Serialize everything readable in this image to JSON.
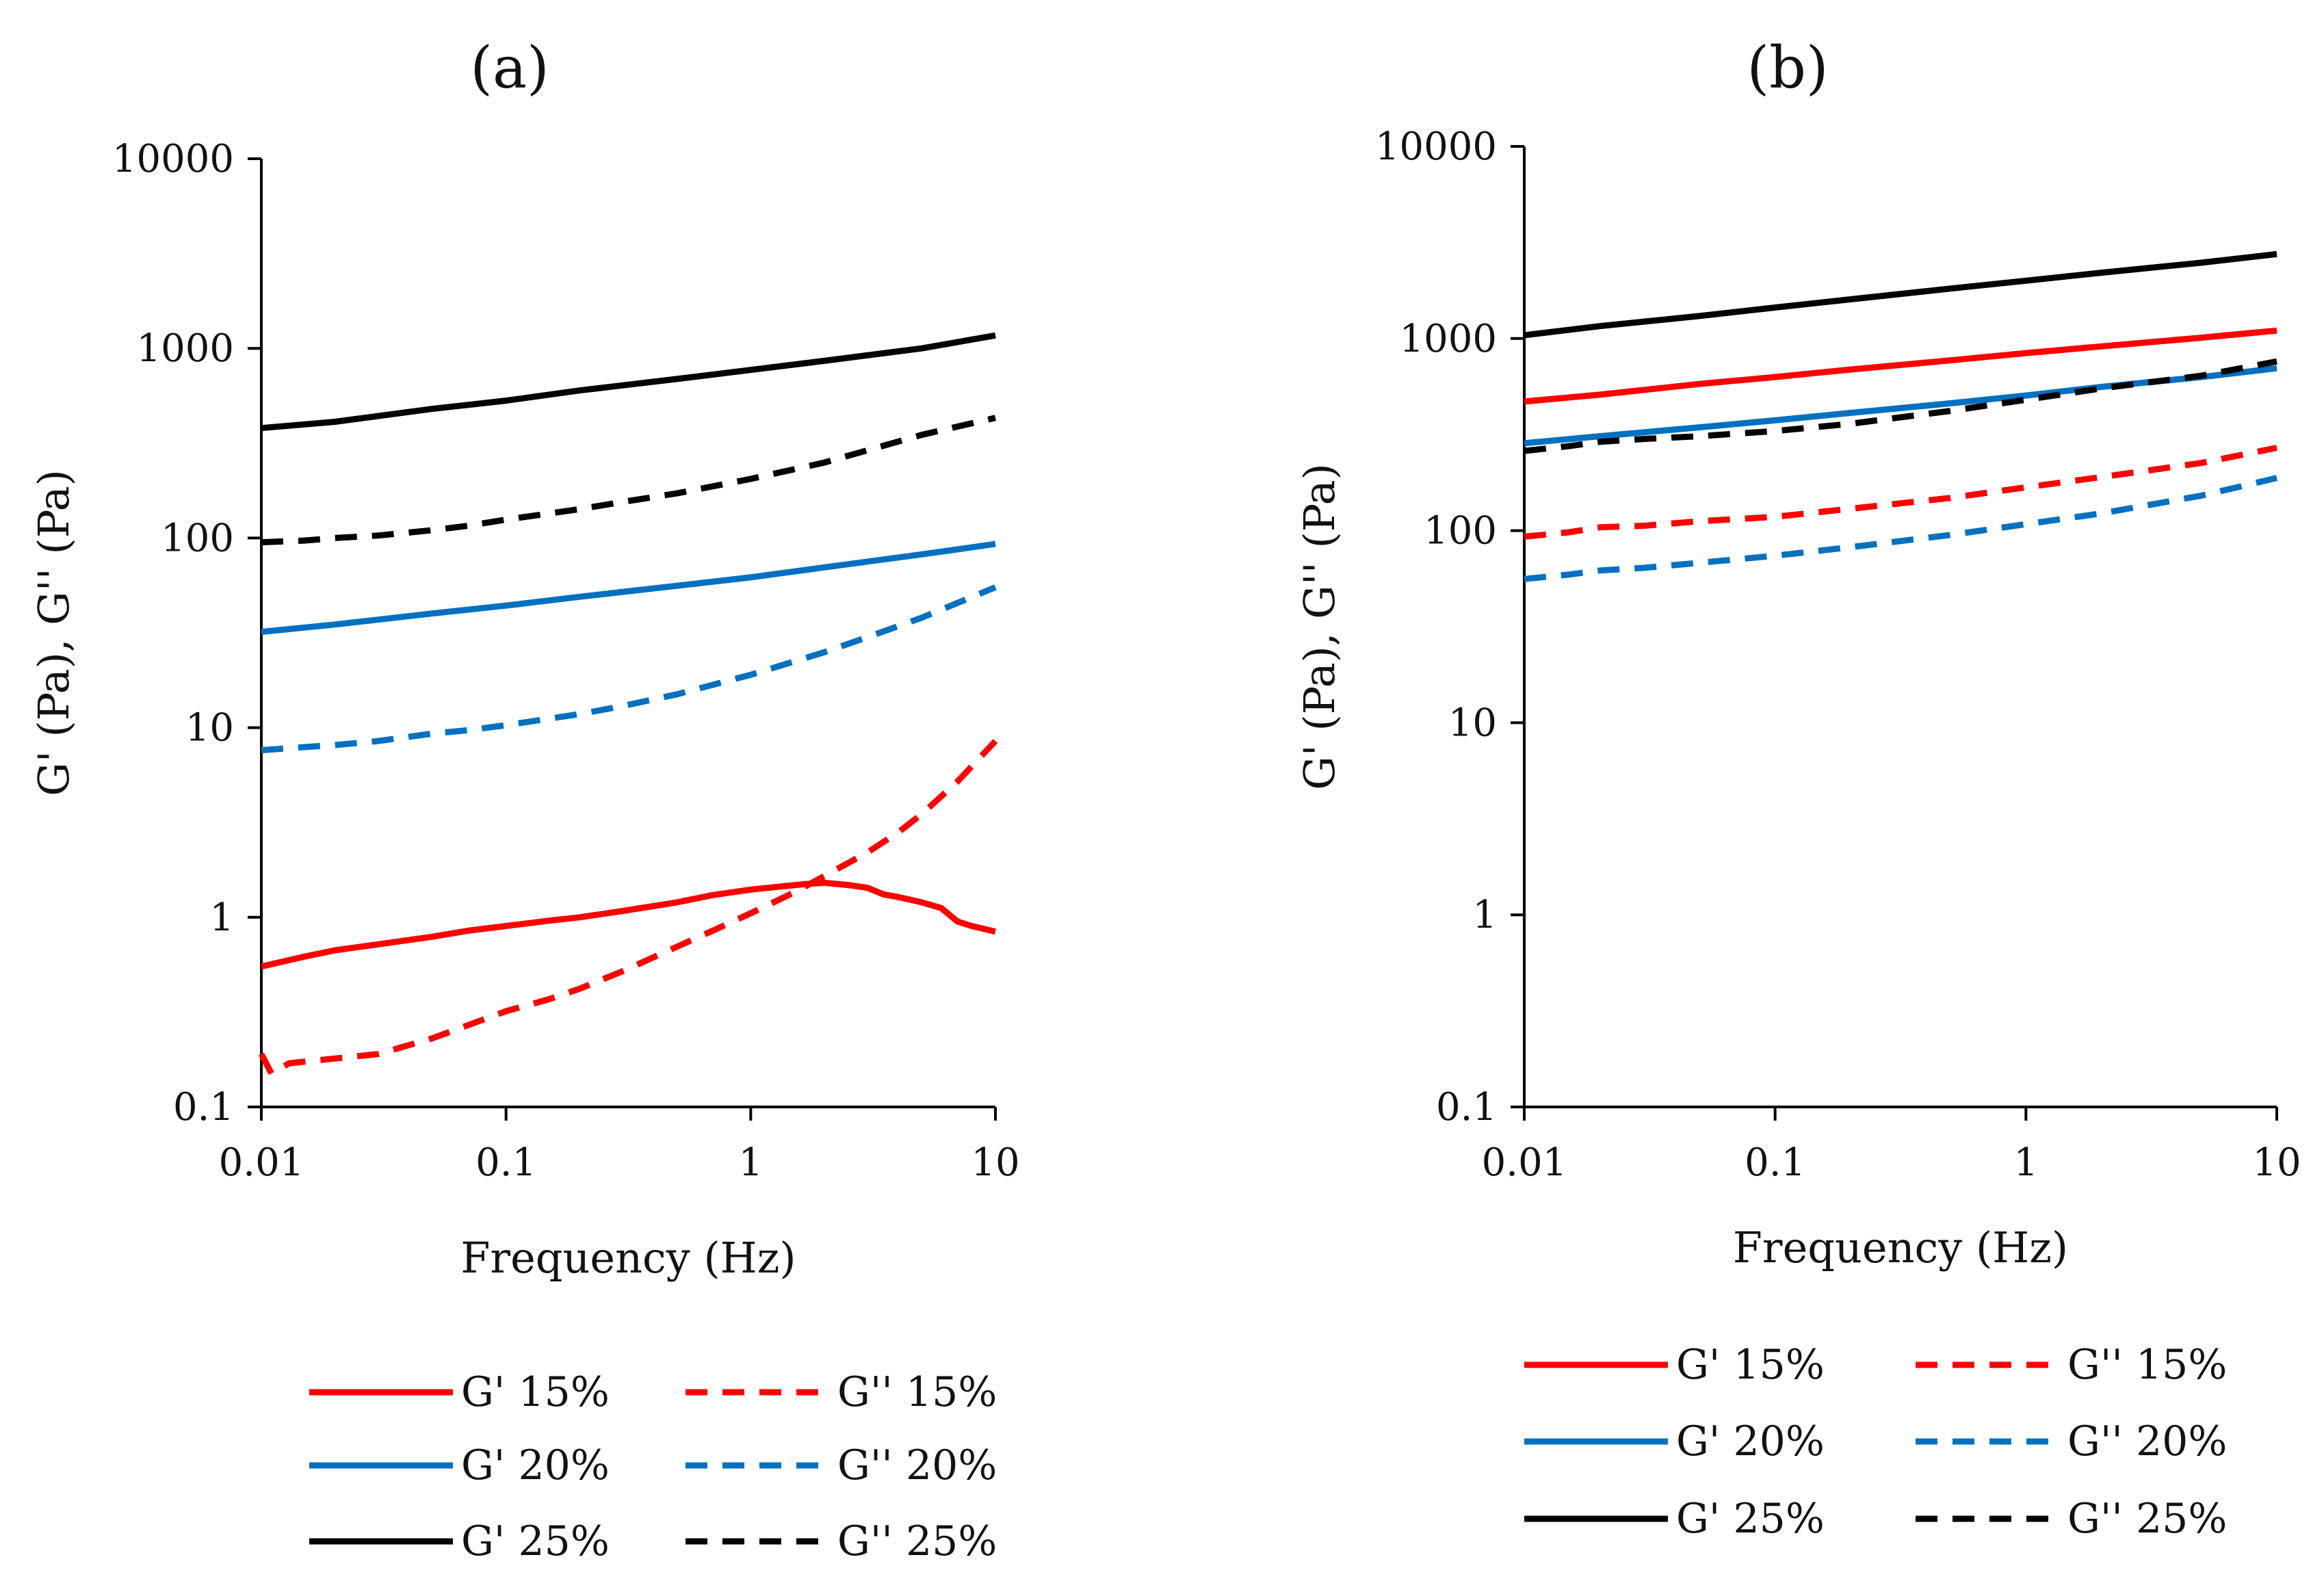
{
  "chart_data": [
    {
      "type": "line",
      "title": "(a)",
      "xlabel": "Frequency (Hz)",
      "ylabel": "G' (Pa), G'' (Pa)",
      "xscale": "log",
      "yscale": "log",
      "xlim": [
        0.01,
        10
      ],
      "ylim": [
        0.1,
        10000
      ],
      "x_tick_labels": [
        "0.01",
        "0.1",
        "1",
        "10"
      ],
      "y_tick_labels": [
        "0.1",
        "1",
        "10",
        "100",
        "1000",
        "10000"
      ],
      "grid": false,
      "legend_position": "bottom",
      "series": [
        {
          "name": "G' 15%",
          "color": "#ff0000",
          "dash": "solid",
          "x": [
            0.01,
            0.015,
            0.02,
            0.03,
            0.05,
            0.07,
            0.1,
            0.15,
            0.2,
            0.3,
            0.5,
            0.7,
            1,
            1.3,
            1.7,
            2,
            2.5,
            3,
            3.5,
            4,
            5,
            6,
            7,
            8,
            10
          ],
          "y": [
            0.55,
            0.62,
            0.67,
            0.72,
            0.79,
            0.85,
            0.9,
            0.96,
            1.0,
            1.08,
            1.2,
            1.31,
            1.4,
            1.45,
            1.5,
            1.52,
            1.48,
            1.43,
            1.32,
            1.28,
            1.2,
            1.12,
            0.95,
            0.9,
            0.84
          ]
        },
        {
          "name": "G'' 15%",
          "color": "#ff0000",
          "dash": "dashed",
          "x": [
            0.01,
            0.011,
            0.013,
            0.02,
            0.03,
            0.05,
            0.07,
            0.1,
            0.15,
            0.2,
            0.3,
            0.5,
            0.7,
            1,
            1.5,
            2,
            3,
            4,
            5,
            7,
            10
          ],
          "y": [
            0.19,
            0.15,
            0.17,
            0.18,
            0.19,
            0.23,
            0.27,
            0.32,
            0.37,
            0.42,
            0.52,
            0.7,
            0.85,
            1.05,
            1.35,
            1.65,
            2.2,
            2.8,
            3.5,
            5.2,
            8.5
          ]
        },
        {
          "name": "G' 20%",
          "color": "#0070c0",
          "dash": "solid",
          "x": [
            0.01,
            0.02,
            0.05,
            0.1,
            0.2,
            0.5,
            1,
            2,
            5,
            10
          ],
          "y": [
            32,
            35,
            40,
            44,
            49,
            56,
            62,
            70,
            82,
            93
          ]
        },
        {
          "name": "G'' 20%",
          "color": "#0070c0",
          "dash": "dashed",
          "x": [
            0.01,
            0.015,
            0.02,
            0.03,
            0.05,
            0.07,
            0.1,
            0.2,
            0.3,
            0.5,
            1,
            2,
            3,
            5,
            10
          ],
          "y": [
            7.6,
            7.9,
            8.1,
            8.5,
            9.3,
            9.7,
            10.3,
            11.8,
            13,
            15,
            19,
            25,
            30,
            38,
            55
          ]
        },
        {
          "name": "G' 25%",
          "color": "#000000",
          "dash": "solid",
          "x": [
            0.01,
            0.02,
            0.05,
            0.1,
            0.2,
            0.5,
            1,
            2,
            5,
            10
          ],
          "y": [
            380,
            410,
            480,
            530,
            600,
            690,
            770,
            860,
            1000,
            1170
          ]
        },
        {
          "name": "G'' 25%",
          "color": "#000000",
          "dash": "dashed",
          "x": [
            0.01,
            0.015,
            0.02,
            0.03,
            0.05,
            0.07,
            0.1,
            0.2,
            0.3,
            0.5,
            1,
            2,
            3,
            5,
            10
          ],
          "y": [
            95,
            97,
            100,
            103,
            110,
            116,
            125,
            142,
            155,
            172,
            205,
            250,
            290,
            350,
            430
          ]
        }
      ],
      "legend": [
        "G' 15%",
        "G'' 15%",
        "G' 20%",
        "G'' 20%",
        "G' 25%",
        "G'' 25%"
      ]
    },
    {
      "type": "line",
      "title": "(b)",
      "xlabel": "Frequency (Hz)",
      "ylabel": "G' (Pa), G'' (Pa)",
      "xscale": "log",
      "yscale": "log",
      "xlim": [
        0.01,
        10
      ],
      "ylim": [
        0.1,
        10000
      ],
      "x_tick_labels": [
        "0.01",
        "0.1",
        "1",
        "10"
      ],
      "y_tick_labels": [
        "0.1",
        "1",
        "10",
        "100",
        "1000",
        "10000"
      ],
      "grid": false,
      "legend_position": "bottom",
      "series": [
        {
          "name": "G' 15%",
          "color": "#ff0000",
          "dash": "solid",
          "x": [
            0.01,
            0.02,
            0.05,
            0.1,
            0.2,
            0.5,
            1,
            2,
            5,
            10
          ],
          "y": [
            470,
            510,
            580,
            630,
            690,
            770,
            840,
            910,
            1010,
            1100
          ]
        },
        {
          "name": "G'' 15%",
          "color": "#ff0000",
          "dash": "dashed",
          "x": [
            0.01,
            0.015,
            0.02,
            0.03,
            0.05,
            0.1,
            0.2,
            0.5,
            1,
            2,
            5,
            10
          ],
          "y": [
            93,
            98,
            104,
            106,
            112,
            118,
            130,
            148,
            168,
            190,
            225,
            270
          ]
        },
        {
          "name": "G' 20%",
          "color": "#0070c0",
          "dash": "solid",
          "x": [
            0.01,
            0.02,
            0.05,
            0.1,
            0.2,
            0.5,
            1,
            2,
            5,
            10
          ],
          "y": [
            285,
            310,
            345,
            375,
            410,
            460,
            505,
            560,
            630,
            700
          ]
        },
        {
          "name": "G'' 20%",
          "color": "#0070c0",
          "dash": "dashed",
          "x": [
            0.01,
            0.015,
            0.02,
            0.03,
            0.05,
            0.1,
            0.2,
            0.5,
            1,
            2,
            5,
            10
          ],
          "y": [
            56,
            59,
            62,
            64,
            68,
            74,
            82,
            95,
            108,
            123,
            152,
            188
          ]
        },
        {
          "name": "G' 25%",
          "color": "#000000",
          "dash": "solid",
          "x": [
            0.01,
            0.02,
            0.05,
            0.1,
            0.2,
            0.5,
            1,
            2,
            5,
            10
          ],
          "y": [
            1040,
            1160,
            1310,
            1450,
            1600,
            1820,
            2000,
            2200,
            2480,
            2750
          ]
        },
        {
          "name": "G'' 25%",
          "color": "#000000",
          "dash": "dashed",
          "x": [
            0.01,
            0.015,
            0.02,
            0.03,
            0.05,
            0.1,
            0.2,
            0.5,
            1,
            2,
            5,
            10
          ],
          "y": [
            260,
            275,
            290,
            300,
            310,
            330,
            360,
            420,
            480,
            550,
            640,
            760
          ]
        }
      ],
      "legend": [
        "G' 15%",
        "G'' 15%",
        "G' 20%",
        "G'' 20%",
        "G' 25%",
        "G'' 25%"
      ]
    }
  ]
}
